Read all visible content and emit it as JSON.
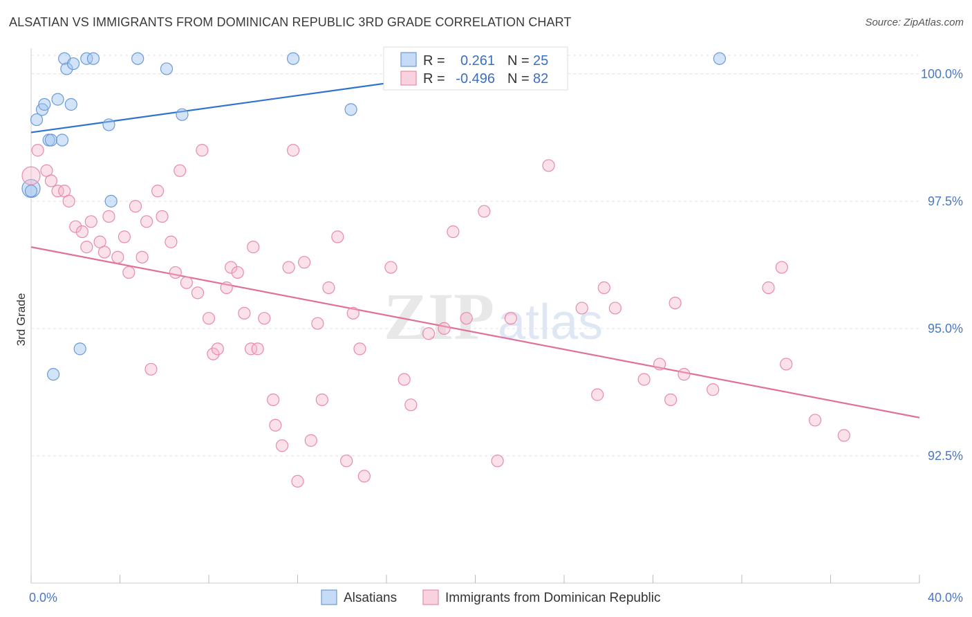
{
  "title": "ALSATIAN VS IMMIGRANTS FROM DOMINICAN REPUBLIC 3RD GRADE CORRELATION CHART",
  "source": "Source: ZipAtlas.com",
  "watermark": "ZIPatlas",
  "colors": {
    "blue": "#4a86d8",
    "blue_fill": "rgba(160,196,240,0.45)",
    "pink": "#e5709a",
    "pink_fill": "rgba(244,180,200,0.45)",
    "axis_text": "#4a78c2"
  },
  "legend": {
    "rows": [
      {
        "r_label": "R =",
        "r_value": "0.261",
        "n_label": "N =",
        "n_value": "25"
      },
      {
        "r_label": "R =",
        "r_value": "-0.496",
        "n_label": "N =",
        "n_value": "82"
      }
    ]
  },
  "bottom_legend": [
    "Alsatians",
    "Immigrants from Dominican Republic"
  ],
  "chart_data": {
    "type": "scatter",
    "title": "ALSATIAN VS IMMIGRANTS FROM DOMINICAN REPUBLIC 3RD GRADE CORRELATION CHART",
    "xlabel": "",
    "ylabel": "3rd Grade",
    "xlim": [
      0,
      40
    ],
    "ylim": [
      90.0,
      100.5
    ],
    "x_tick_labels": [
      "0.0%",
      "40.0%"
    ],
    "y_ticks": [
      92.5,
      95.0,
      97.5,
      100.0
    ],
    "y_tick_labels": [
      "92.5%",
      "95.0%",
      "97.5%",
      "100.0%"
    ],
    "grid": true,
    "legend_position": "top-center",
    "series": [
      {
        "name": "Alsatians",
        "color": "#4a86d8",
        "r": 0.261,
        "n": 25,
        "trend": [
          [
            0,
            98.85
          ],
          [
            24,
            100.3
          ]
        ],
        "points": [
          [
            0.0,
            97.75
          ],
          [
            0.25,
            99.1
          ],
          [
            0.5,
            99.3
          ],
          [
            0.6,
            99.4
          ],
          [
            0.8,
            98.7
          ],
          [
            0.9,
            98.7
          ],
          [
            1.0,
            94.1
          ],
          [
            1.2,
            99.5
          ],
          [
            1.4,
            98.7
          ],
          [
            1.5,
            100.3
          ],
          [
            1.6,
            100.1
          ],
          [
            1.8,
            99.4
          ],
          [
            1.9,
            100.2
          ],
          [
            2.2,
            94.6
          ],
          [
            2.5,
            100.3
          ],
          [
            2.8,
            100.3
          ],
          [
            3.5,
            99.0
          ],
          [
            3.6,
            97.5
          ],
          [
            4.8,
            100.3
          ],
          [
            6.1,
            100.1
          ],
          [
            6.8,
            99.2
          ],
          [
            11.8,
            100.3
          ],
          [
            14.4,
            99.3
          ],
          [
            31.0,
            100.3
          ],
          [
            0.0,
            97.7
          ]
        ]
      },
      {
        "name": "Immigrants from Dominican Republic",
        "color": "#e5709a",
        "r": -0.496,
        "n": 82,
        "trend": [
          [
            0,
            96.6
          ],
          [
            40,
            93.25
          ]
        ],
        "points": [
          [
            0.0,
            98.0
          ],
          [
            0.3,
            98.5
          ],
          [
            0.7,
            98.1
          ],
          [
            0.9,
            97.9
          ],
          [
            1.2,
            97.7
          ],
          [
            1.5,
            97.7
          ],
          [
            1.7,
            97.5
          ],
          [
            2.0,
            97.0
          ],
          [
            2.3,
            96.9
          ],
          [
            2.5,
            96.6
          ],
          [
            2.7,
            97.1
          ],
          [
            3.1,
            96.7
          ],
          [
            3.3,
            96.5
          ],
          [
            3.5,
            97.2
          ],
          [
            3.9,
            96.4
          ],
          [
            4.2,
            96.8
          ],
          [
            4.4,
            96.1
          ],
          [
            4.7,
            97.4
          ],
          [
            5.0,
            96.4
          ],
          [
            5.2,
            97.1
          ],
          [
            5.4,
            94.2
          ],
          [
            5.7,
            97.7
          ],
          [
            5.9,
            97.2
          ],
          [
            6.3,
            96.7
          ],
          [
            6.5,
            96.1
          ],
          [
            6.7,
            98.1
          ],
          [
            7.0,
            95.9
          ],
          [
            7.5,
            95.7
          ],
          [
            7.7,
            98.5
          ],
          [
            8.0,
            95.2
          ],
          [
            8.2,
            94.5
          ],
          [
            8.4,
            94.6
          ],
          [
            8.8,
            95.8
          ],
          [
            9.0,
            96.2
          ],
          [
            9.3,
            96.1
          ],
          [
            9.6,
            95.3
          ],
          [
            9.9,
            94.6
          ],
          [
            10.0,
            96.6
          ],
          [
            10.2,
            94.6
          ],
          [
            10.5,
            95.2
          ],
          [
            10.9,
            93.6
          ],
          [
            11.0,
            93.1
          ],
          [
            11.3,
            92.7
          ],
          [
            11.6,
            96.2
          ],
          [
            11.8,
            98.5
          ],
          [
            12.0,
            92.0
          ],
          [
            12.3,
            96.3
          ],
          [
            12.6,
            92.8
          ],
          [
            12.9,
            95.1
          ],
          [
            13.1,
            93.6
          ],
          [
            13.4,
            95.8
          ],
          [
            13.8,
            96.8
          ],
          [
            14.2,
            92.4
          ],
          [
            14.5,
            95.3
          ],
          [
            14.8,
            94.6
          ],
          [
            15.0,
            92.1
          ],
          [
            16.2,
            96.2
          ],
          [
            16.8,
            94.0
          ],
          [
            17.1,
            93.5
          ],
          [
            17.9,
            94.9
          ],
          [
            18.6,
            95.0
          ],
          [
            19.0,
            96.9
          ],
          [
            19.6,
            95.2
          ],
          [
            20.4,
            97.3
          ],
          [
            21.0,
            92.4
          ],
          [
            21.6,
            95.2
          ],
          [
            23.3,
            98.2
          ],
          [
            24.8,
            95.4
          ],
          [
            25.5,
            93.7
          ],
          [
            25.8,
            95.8
          ],
          [
            26.3,
            95.4
          ],
          [
            27.6,
            94.0
          ],
          [
            28.3,
            94.3
          ],
          [
            28.8,
            93.6
          ],
          [
            29.0,
            95.5
          ],
          [
            29.4,
            94.1
          ],
          [
            30.7,
            93.8
          ],
          [
            33.2,
            95.8
          ],
          [
            33.8,
            96.2
          ],
          [
            34.0,
            94.3
          ],
          [
            35.3,
            93.2
          ],
          [
            36.6,
            92.9
          ]
        ]
      }
    ]
  }
}
